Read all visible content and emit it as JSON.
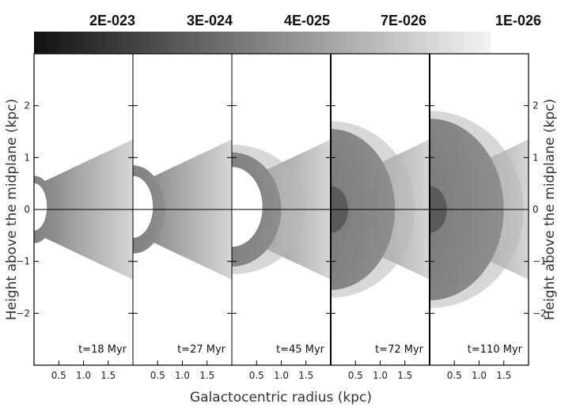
{
  "chart_data": {
    "type": "heatmap",
    "colorbar": {
      "labels": [
        "2E-023",
        "3E-024",
        "4E-025",
        "7E-026",
        "1E-026"
      ],
      "colors": {
        "dark": "#111111",
        "light": "#f4f4f4"
      }
    },
    "xlabel": "Galactocentric radius (kpc)",
    "ylabel": "Height above the midplane (kpc)",
    "x_ticks": [
      "0.5",
      "1.0",
      "1.5"
    ],
    "x_tick_values": [
      0.5,
      1.0,
      1.5
    ],
    "y_ticks": [
      "2",
      "1",
      "0",
      "−1",
      "−2"
    ],
    "y_tick_values": [
      2,
      1,
      0,
      -1,
      -2
    ],
    "xlim": [
      0,
      2.0
    ],
    "ylim": [
      -3.0,
      3.0
    ],
    "panels": [
      {
        "time_label": "t=18 Myr",
        "bubble_radius": 0.42,
        "bubble_height": 0.65,
        "hot_core": true,
        "shell_outer": 0.9
      },
      {
        "time_label": "t=27 Myr",
        "bubble_radius": 0.65,
        "bubble_height": 0.85,
        "hot_core": true,
        "shell_outer": 1.1
      },
      {
        "time_label": "t=45 Myr",
        "bubble_radius": 1.0,
        "bubble_height": 1.1,
        "hot_core": true,
        "shell_outer": 1.5
      },
      {
        "time_label": "t=72 Myr",
        "bubble_radius": 1.3,
        "bubble_height": 1.55,
        "hot_core": false,
        "shell_outer": 1.7
      },
      {
        "time_label": "t=110 Myr",
        "bubble_radius": 1.5,
        "bubble_height": 1.75,
        "hot_core": false,
        "shell_outer": 1.9
      }
    ]
  }
}
